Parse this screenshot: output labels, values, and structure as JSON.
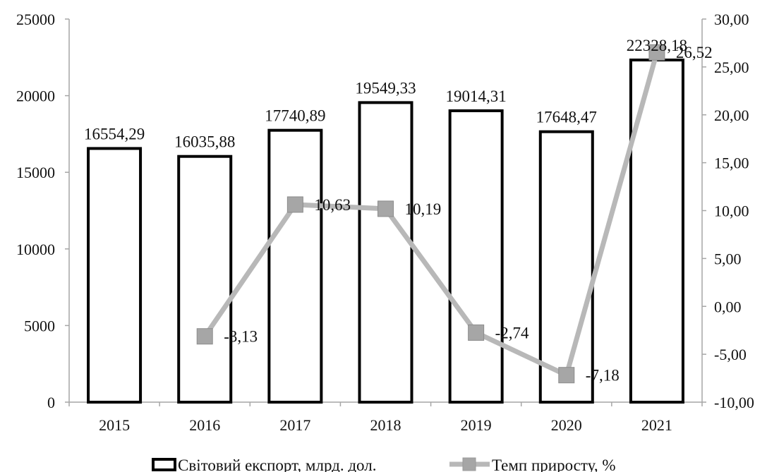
{
  "chart_data": {
    "type": "bar+line",
    "categories": [
      "2015",
      "2016",
      "2017",
      "2018",
      "2019",
      "2020",
      "2021"
    ],
    "series": [
      {
        "name": "Світовий експорт, млрд. дол.",
        "type": "bar",
        "axis": "left",
        "values": [
          16554.29,
          16035.88,
          17740.89,
          19549.33,
          19014.31,
          17648.47,
          22328.18
        ],
        "labels": [
          "16554,29",
          "16035,88",
          "17740,89",
          "19549,33",
          "19014,31",
          "17648,47",
          "22328,18"
        ]
      },
      {
        "name": "Темп приросту, %",
        "type": "line",
        "axis": "right",
        "values": [
          null,
          -3.13,
          10.63,
          10.19,
          -2.74,
          -7.18,
          26.52
        ],
        "labels": [
          "",
          "-3,13",
          "10,63",
          "10,19",
          "-2,74",
          "-7,18",
          "26,52"
        ]
      }
    ],
    "y_left": {
      "min": 0,
      "max": 25000,
      "ticks": [
        0,
        5000,
        10000,
        15000,
        20000,
        25000
      ],
      "tick_labels": [
        "0",
        "5000",
        "10000",
        "15000",
        "20000",
        "25000"
      ]
    },
    "y_right": {
      "min": -10,
      "max": 30,
      "ticks": [
        -10,
        -5,
        0,
        5,
        10,
        15,
        20,
        25,
        30
      ],
      "tick_labels": [
        "-10,00",
        "-5,00",
        "0,00",
        "5,00",
        "10,00",
        "15,00",
        "20,00",
        "25,00",
        "30,00"
      ]
    },
    "grid": false,
    "legend": "bottom",
    "colors": {
      "bar_fill": "#ffffff",
      "bar_stroke": "#000000",
      "line": "#b8b8b8",
      "marker": "#a6a6a6",
      "axis": "#a6a6a6"
    }
  }
}
